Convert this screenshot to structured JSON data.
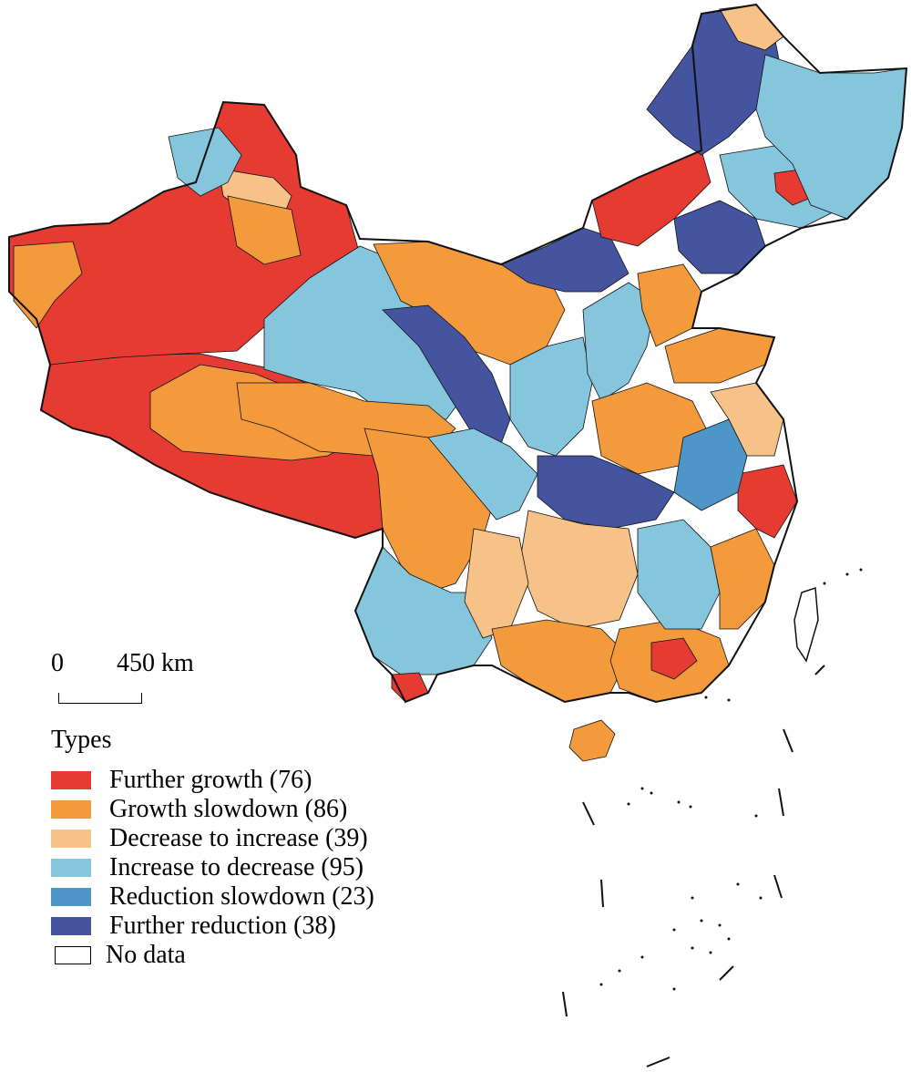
{
  "map": {
    "colors": {
      "further_growth": "#e63b32",
      "growth_slowdown": "#f29a3c",
      "decrease_to_increase": "#f7c287",
      "increase_to_decrease": "#85c6dc",
      "reduction_slowdown": "#4f96c8",
      "further_reduction": "#44549e",
      "no_data": "#ffffff",
      "border": "#111111"
    }
  },
  "scale": {
    "zero": "0",
    "distance": "450 km"
  },
  "legend": {
    "title": "Types",
    "items": [
      {
        "label": "Further growth (76)",
        "color": "#e63b32"
      },
      {
        "label": "Growth slowdown (86)",
        "color": "#f29a3c"
      },
      {
        "label": "Decrease to increase (39)",
        "color": "#f7c287"
      },
      {
        "label": "Increase to decrease (95)",
        "color": "#85c6dc"
      },
      {
        "label": "Reduction slowdown (23)",
        "color": "#4f96c8"
      },
      {
        "label": "Further reduction (38)",
        "color": "#44549e"
      },
      {
        "label": "No data",
        "color": "#ffffff"
      }
    ]
  }
}
